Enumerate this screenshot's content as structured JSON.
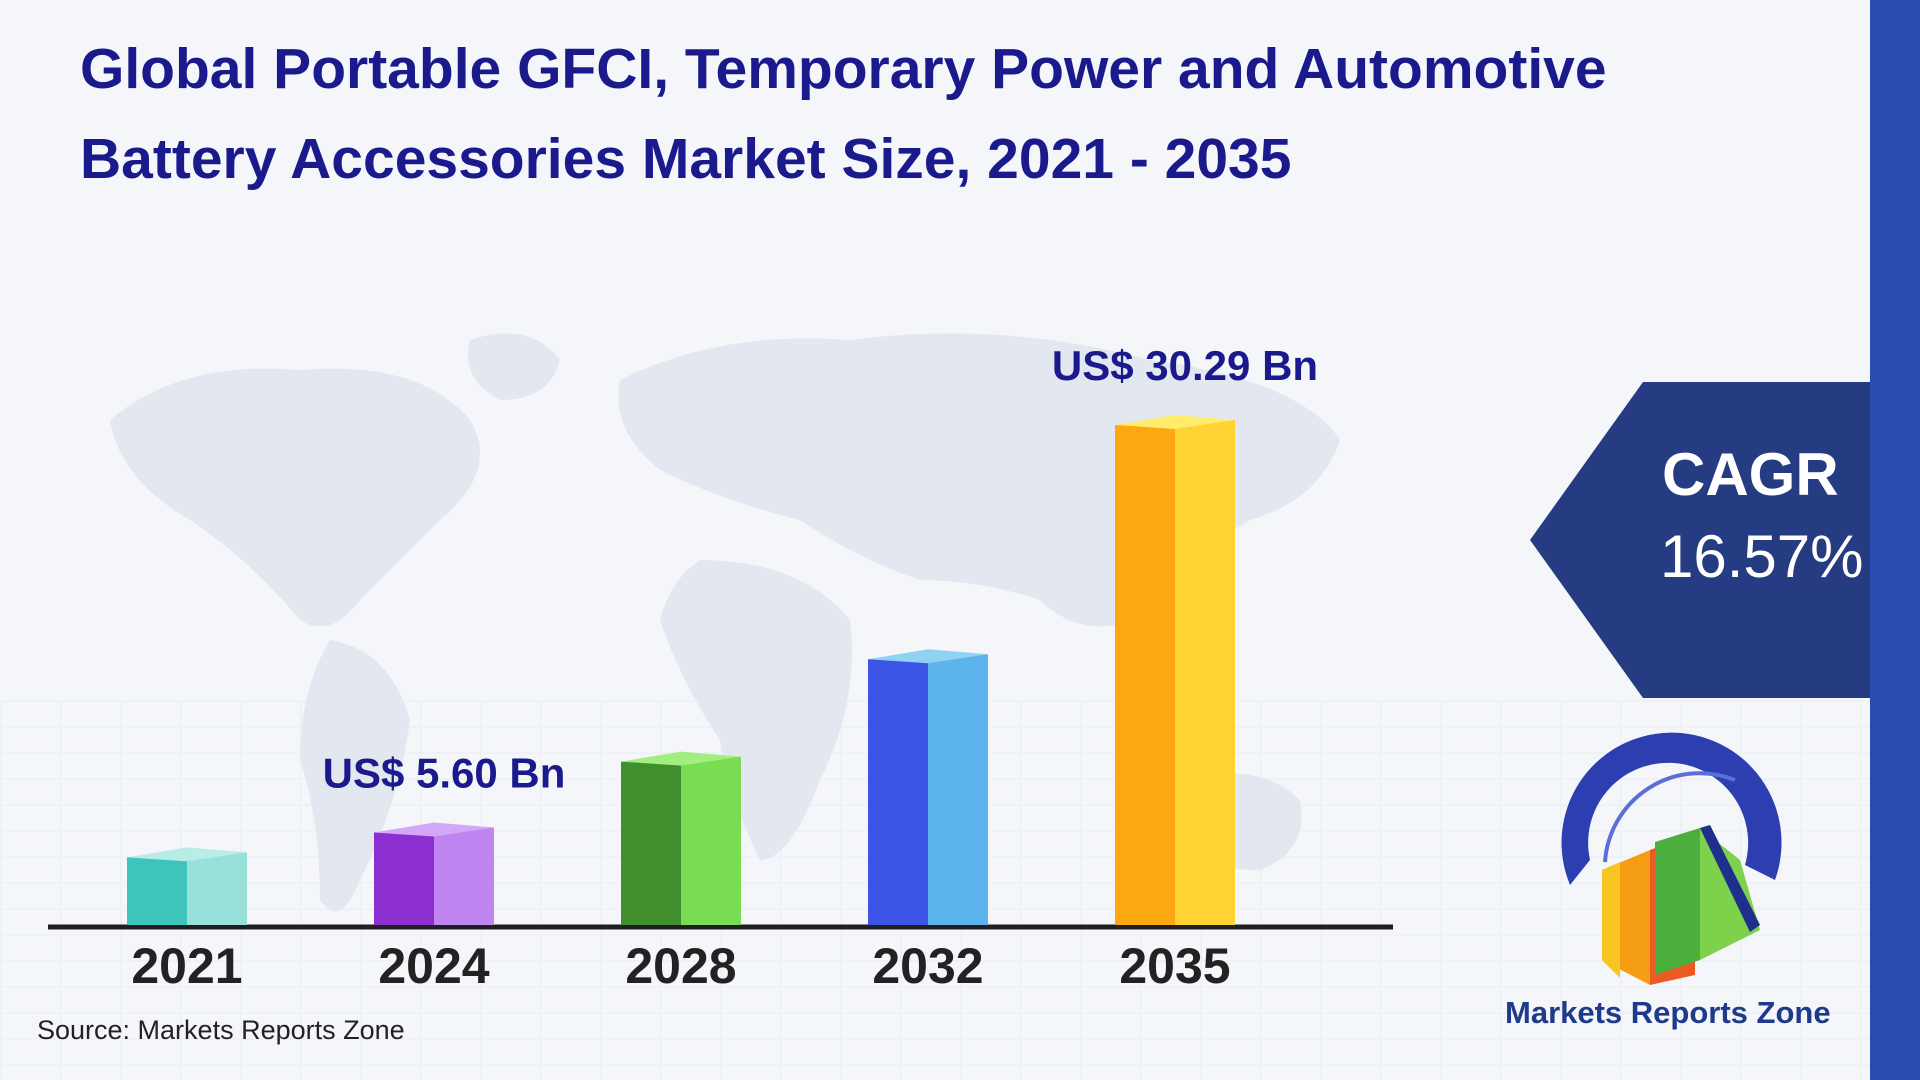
{
  "title": "Global Portable GFCI, Temporary Power and Automotive Battery Accessories Market Size, 2021 - 2035",
  "source": "Source: Markets Reports Zone",
  "cagr": {
    "label": "CAGR",
    "value": "16.57%"
  },
  "brand": {
    "name": "Markets Reports Zone"
  },
  "colors": {
    "title": "#1a1a8c",
    "cagr_panel": "#253b82",
    "stripe": "#2b4cb0"
  },
  "chart_data": {
    "type": "bar",
    "categories": [
      "2021",
      "2024",
      "2028",
      "2032",
      "2035"
    ],
    "values": [
      4.1,
      5.6,
      9.9,
      16.1,
      30.29
    ],
    "data_labels": [
      "",
      "US$ 5.60 Bn",
      "",
      "",
      "US$ 30.29 Bn"
    ],
    "bar_colors": [
      {
        "front": "#3cc4bd",
        "side": "#99e0db",
        "top": "#b7ece7"
      },
      {
        "front": "#8c2fd0",
        "side": "#c085f0",
        "top": "#d2a8f6"
      },
      {
        "front": "#3f8f2e",
        "side": "#7adc52",
        "top": "#a2ee7f"
      },
      {
        "front": "#3d55e6",
        "side": "#5bb5ec",
        "top": "#8fd2f4"
      },
      {
        "front": "#fda713",
        "side": "#ffd332",
        "top": "#ffec6a"
      }
    ],
    "xlabel": "",
    "ylabel": ""
  }
}
